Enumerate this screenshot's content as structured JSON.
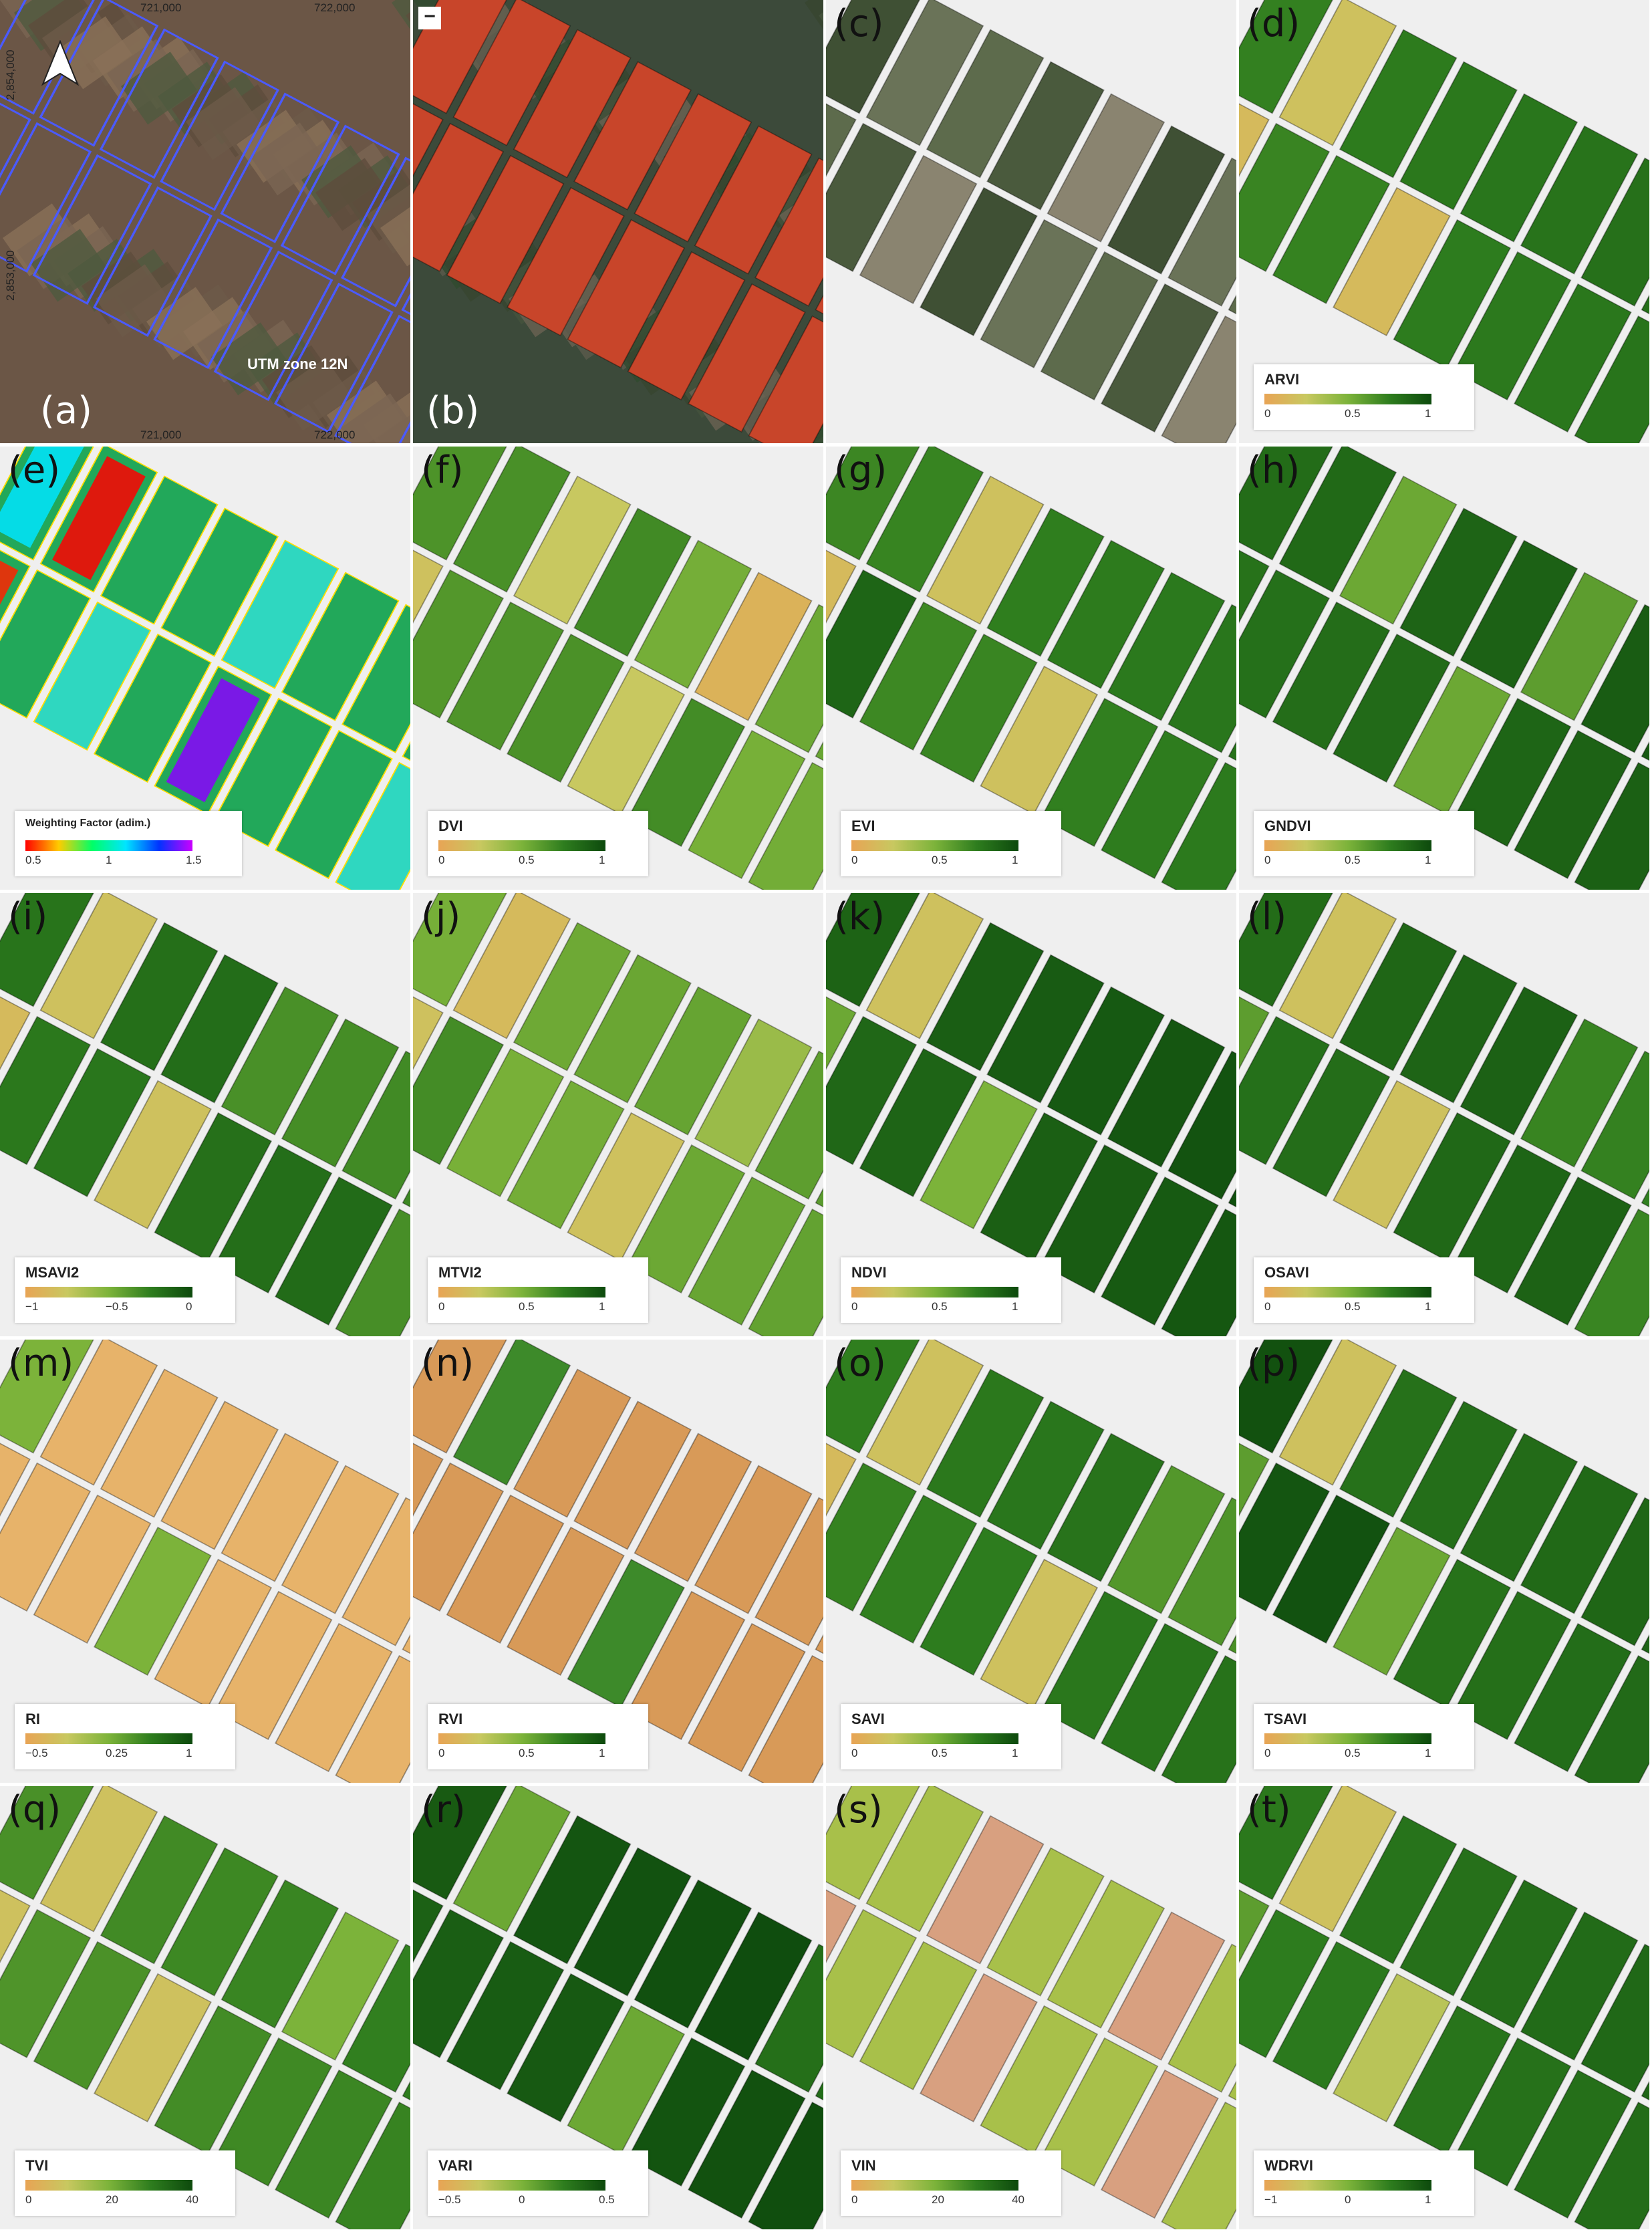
{
  "panels": [
    {
      "id": "a",
      "label": "(a)"
    },
    {
      "id": "b",
      "label": "(b)"
    },
    {
      "id": "c",
      "label": "(c)"
    },
    {
      "id": "d",
      "label": "(d)",
      "index": "ARVI",
      "ticks": [
        "0",
        "0.5",
        "1"
      ]
    },
    {
      "id": "e",
      "label": "(e)",
      "index": "Weighting Factor (adim.)",
      "ticks": [
        "0.5",
        "1",
        "1.5"
      ]
    },
    {
      "id": "f",
      "label": "(f)",
      "index": "DVI",
      "ticks": [
        "0",
        "0.5",
        "1"
      ]
    },
    {
      "id": "g",
      "label": "(g)",
      "index": "EVI",
      "ticks": [
        "0",
        "0.5",
        "1"
      ]
    },
    {
      "id": "h",
      "label": "(h)",
      "index": "GNDVI",
      "ticks": [
        "0",
        "0.5",
        "1"
      ]
    },
    {
      "id": "i",
      "label": "(i)",
      "index": "MSAVI2",
      "ticks": [
        "−1",
        "−0.5",
        "0"
      ]
    },
    {
      "id": "j",
      "label": "(j)",
      "index": "MTVI2",
      "ticks": [
        "0",
        "0.5",
        "1"
      ]
    },
    {
      "id": "k",
      "label": "(k)",
      "index": "NDVI",
      "ticks": [
        "0",
        "0.5",
        "1"
      ]
    },
    {
      "id": "l",
      "label": "(l)",
      "index": "OSAVI",
      "ticks": [
        "0",
        "0.5",
        "1"
      ]
    },
    {
      "id": "m",
      "label": "(m)",
      "index": "RI",
      "ticks": [
        "−0.5",
        "0.25",
        "1"
      ]
    },
    {
      "id": "n",
      "label": "(n)",
      "index": "RVI",
      "ticks": [
        "0",
        "0.5",
        "1"
      ]
    },
    {
      "id": "o",
      "label": "(o)",
      "index": "SAVI",
      "ticks": [
        "0",
        "0.5",
        "1"
      ]
    },
    {
      "id": "p",
      "label": "(p)",
      "index": "TSAVI",
      "ticks": [
        "0",
        "0.5",
        "1"
      ]
    },
    {
      "id": "q",
      "label": "(q)",
      "index": "TVI",
      "ticks": [
        "0",
        "20",
        "40"
      ]
    },
    {
      "id": "r",
      "label": "(r)",
      "index": "VARI",
      "ticks": [
        "−0.5",
        "0",
        "0.5"
      ]
    },
    {
      "id": "s",
      "label": "(s)",
      "index": "VIN",
      "ticks": [
        "0",
        "20",
        "40"
      ]
    },
    {
      "id": "t",
      "label": "(t)",
      "index": "WDRVI",
      "ticks": [
        "−1",
        "0",
        "1"
      ]
    }
  ],
  "map_a": {
    "x_ticks": [
      "721,000",
      "722,000"
    ],
    "y_ticks": [
      "2,854,000",
      "2,853,000"
    ],
    "zone": "UTM zone 12N"
  },
  "colors": {
    "green_ramp": [
      "#e8a455",
      "#c8c860",
      "#7cb33a",
      "#2e7d1e",
      "#0d4a0d"
    ],
    "rainbow": [
      "#ff0000",
      "#ffcc00",
      "#00ff66",
      "#00e5ff",
      "#0033ff",
      "#cc00ff"
    ],
    "field_b": "#c8452a",
    "imagery_bg": "#3a4a38"
  }
}
